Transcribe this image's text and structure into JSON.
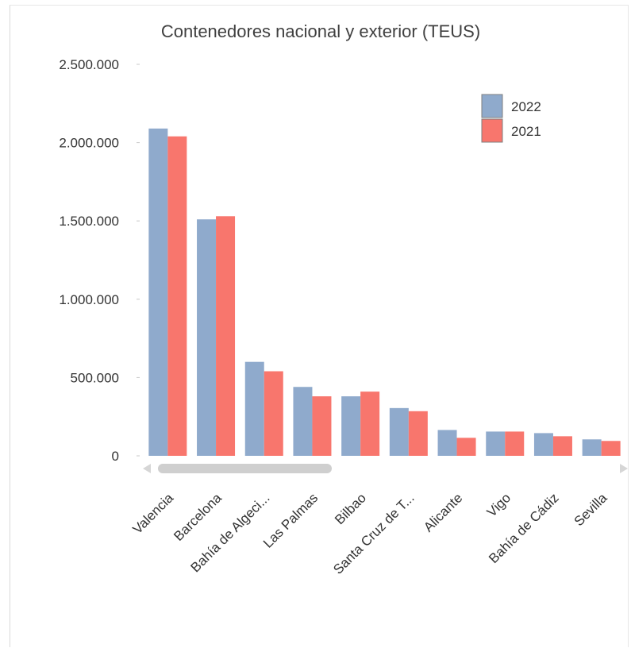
{
  "chart_data": {
    "type": "bar",
    "title": "Contenedores nacional y exterior (TEUS)",
    "xlabel": "",
    "ylabel": "",
    "ylim": [
      0,
      2500000
    ],
    "y_ticks": [
      "0",
      "500.000",
      "1.000.000",
      "1.500.000",
      "2.000.000",
      "2.500.000"
    ],
    "y_tick_values": [
      0,
      500000,
      1000000,
      1500000,
      2000000,
      2500000
    ],
    "categories": [
      "Valencia",
      "Barcelona",
      "Bahía de Algeci...",
      "Las Palmas",
      "Bilbao",
      "Santa Cruz de T...",
      "Alicante",
      "Vigo",
      "Bahía de Cádiz",
      "Sevilla"
    ],
    "series": [
      {
        "name": "2022",
        "color": "#8faacc",
        "values": [
          2090000,
          1510000,
          600000,
          440000,
          380000,
          305000,
          165000,
          155000,
          145000,
          105000
        ]
      },
      {
        "name": "2021",
        "color": "#f8766d",
        "values": [
          2040000,
          1530000,
          540000,
          380000,
          410000,
          285000,
          115000,
          155000,
          125000,
          95000
        ]
      }
    ],
    "legend_position": "top-right",
    "grid": false,
    "scrollbar": true
  }
}
